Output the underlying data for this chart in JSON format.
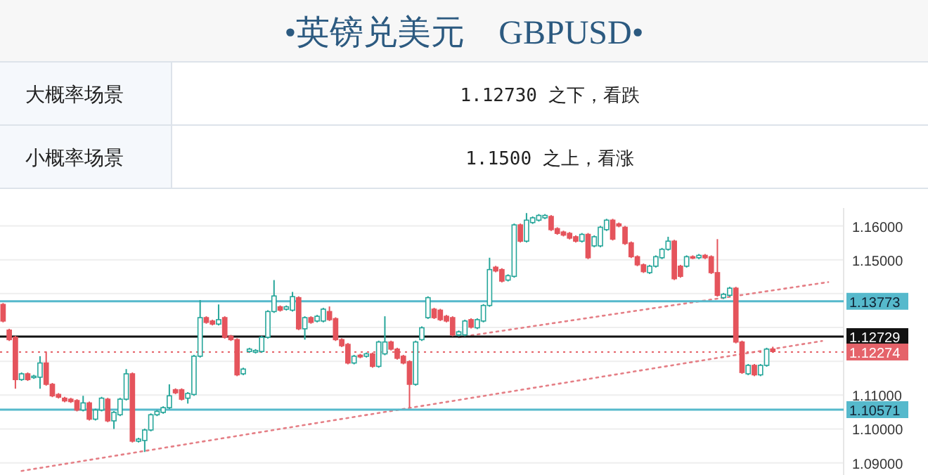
{
  "chart_data": {
    "type": "candlestick",
    "title": "•英镑兑美元　GBPUSD•",
    "annotations": [
      "大概率场景",
      "1.12730 之下，看跌",
      "小概率场景",
      "1.1500 之上，看涨"
    ],
    "categories": [
      null,
      null,
      null,
      null,
      null,
      null,
      null,
      null,
      null,
      null,
      null,
      null,
      null,
      null,
      null,
      null,
      null,
      null,
      null,
      null,
      null,
      null,
      null,
      null,
      null,
      null,
      null,
      null,
      null,
      null,
      null,
      null,
      null,
      null,
      null,
      null,
      null,
      null,
      null,
      null,
      null,
      null,
      null,
      null,
      null,
      null,
      null,
      null,
      null,
      null,
      null,
      null,
      null,
      null,
      null,
      null,
      null,
      null,
      null,
      null,
      null,
      null,
      null,
      null,
      null,
      null,
      null,
      null,
      null,
      null,
      null,
      null,
      null,
      null,
      null,
      null,
      null,
      null,
      null,
      null,
      null,
      null,
      null,
      null,
      null,
      null,
      null,
      null,
      null,
      null,
      null,
      null,
      null,
      null,
      null,
      null,
      null,
      null,
      null,
      null,
      null,
      null,
      null,
      null,
      null,
      null,
      null,
      null,
      null,
      null,
      null,
      null,
      null,
      null,
      null,
      null,
      null,
      null,
      null,
      null,
      null,
      null,
      null,
      null,
      null,
      null,
      null,
      null,
      null,
      null,
      null,
      null,
      null,
      null,
      null,
      null,
      null
    ],
    "ohlc": [
      [
        1.1368,
        1.1372,
        1.1315,
        1.1319
      ],
      [
        1.1292,
        1.1296,
        1.126,
        1.1264
      ],
      [
        1.1271,
        1.1275,
        1.1119,
        1.1146
      ],
      [
        1.1146,
        1.1167,
        1.1142,
        1.1163
      ],
      [
        1.1163,
        1.1167,
        1.1142,
        1.1146
      ],
      [
        1.1152,
        1.116,
        1.1148,
        1.1156
      ],
      [
        1.1153,
        1.1215,
        1.1119,
        1.1195
      ],
      [
        1.1195,
        1.1229,
        1.1128,
        1.1132
      ],
      [
        1.1132,
        1.1136,
        1.1094,
        1.1098
      ],
      [
        1.1102,
        1.1106,
        1.109,
        1.1094
      ],
      [
        1.1091,
        1.1095,
        1.1079,
        1.1083
      ],
      [
        1.1088,
        1.1092,
        1.1077,
        1.1081
      ],
      [
        1.1084,
        1.1088,
        1.1052,
        1.1056
      ],
      [
        1.1056,
        1.1098,
        1.1052,
        1.1077
      ],
      [
        1.1077,
        1.1081,
        1.1025,
        1.1029
      ],
      [
        1.1029,
        1.106,
        1.1025,
        1.1056
      ],
      [
        1.1056,
        1.1095,
        1.1052,
        1.1091
      ],
      [
        1.1088,
        1.1092,
        1.102,
        1.1024
      ],
      [
        1.1024,
        1.1053,
        1.1,
        1.1049
      ],
      [
        1.1042,
        1.1092,
        1.1038,
        1.1088
      ],
      [
        1.1088,
        1.1177,
        1.1084,
        1.1163
      ],
      [
        1.1163,
        1.1167,
        1.096,
        1.0964
      ],
      [
        1.0964,
        1.0974,
        1.096,
        1.097
      ],
      [
        1.0966,
        1.1001,
        1.0932,
        1.0997
      ],
      [
        1.0997,
        1.1046,
        1.0993,
        1.1042
      ],
      [
        1.1042,
        1.1056,
        1.1038,
        1.1052
      ],
      [
        1.1049,
        1.1067,
        1.1045,
        1.1063
      ],
      [
        1.1063,
        1.1132,
        1.1059,
        1.1098
      ],
      [
        1.1116,
        1.112,
        1.1103,
        1.1107
      ],
      [
        1.1116,
        1.112,
        1.1084,
        1.1088
      ],
      [
        1.1091,
        1.1109,
        1.1075,
        1.1105
      ],
      [
        1.1102,
        1.1219,
        1.1098,
        1.1215
      ],
      [
        1.1215,
        1.1381,
        1.1211,
        1.1329
      ],
      [
        1.1329,
        1.1333,
        1.1311,
        1.1315
      ],
      [
        1.1319,
        1.1323,
        1.1306,
        1.131
      ],
      [
        1.131,
        1.1368,
        1.1306,
        1.1323
      ],
      [
        1.1329,
        1.1333,
        1.1267,
        1.1271
      ],
      [
        1.1274,
        1.1278,
        1.126,
        1.1264
      ],
      [
        1.1264,
        1.1268,
        1.1156,
        1.116
      ],
      [
        1.1163,
        1.1181,
        1.1159,
        1.1177
      ],
      [
        1.1229,
        1.124,
        1.1225,
        1.1236
      ],
      [
        1.1227,
        1.1236,
        1.1223,
        1.1232
      ],
      [
        1.1229,
        1.1275,
        1.1225,
        1.1271
      ],
      [
        1.1271,
        1.1351,
        1.1267,
        1.1347
      ],
      [
        1.1347,
        1.144,
        1.1343,
        1.1393
      ],
      [
        1.1361,
        1.1365,
        1.1347,
        1.1351
      ],
      [
        1.1354,
        1.1365,
        1.135,
        1.1361
      ],
      [
        1.1351,
        1.1405,
        1.1347,
        1.1391
      ],
      [
        1.1388,
        1.1392,
        1.1292,
        1.1296
      ],
      [
        1.1296,
        1.1333,
        1.1264,
        1.1329
      ],
      [
        1.1329,
        1.1333,
        1.1311,
        1.1315
      ],
      [
        1.1319,
        1.1337,
        1.1315,
        1.1333
      ],
      [
        1.1319,
        1.1358,
        1.1315,
        1.1354
      ],
      [
        1.1347,
        1.1362,
        1.1319,
        1.1323
      ],
      [
        1.1326,
        1.133,
        1.126,
        1.1264
      ],
      [
        1.1264,
        1.1268,
        1.1242,
        1.1246
      ],
      [
        1.125,
        1.1254,
        1.1191,
        1.1195
      ],
      [
        1.1195,
        1.1219,
        1.1191,
        1.1215
      ],
      [
        1.1218,
        1.1222,
        1.1209,
        1.1213
      ],
      [
        1.1215,
        1.1226,
        1.1211,
        1.1222
      ],
      [
        1.1222,
        1.1226,
        1.1181,
        1.1185
      ],
      [
        1.1185,
        1.1261,
        1.1181,
        1.1257
      ],
      [
        1.1222,
        1.1333,
        1.1218,
        1.1257
      ],
      [
        1.1257,
        1.1261,
        1.1232,
        1.1236
      ],
      [
        1.1236,
        1.124,
        1.1205,
        1.1209
      ],
      [
        1.1215,
        1.1219,
        1.1191,
        1.1195
      ],
      [
        1.1199,
        1.1203,
        1.1063,
        1.1132
      ],
      [
        1.1132,
        1.1261,
        1.1128,
        1.1257
      ],
      [
        1.1264,
        1.1303,
        1.126,
        1.1299
      ],
      [
        1.1329,
        1.1392,
        1.1325,
        1.1388
      ],
      [
        1.1354,
        1.1358,
        1.1325,
        1.1329
      ],
      [
        1.1351,
        1.1355,
        1.1319,
        1.1323
      ],
      [
        1.1333,
        1.1337,
        1.1315,
        1.1319
      ],
      [
        1.1329,
        1.1333,
        1.1274,
        1.1278
      ],
      [
        1.1278,
        1.1291,
        1.1274,
        1.1287
      ],
      [
        1.1278,
        1.1323,
        1.1274,
        1.1319
      ],
      [
        1.1323,
        1.1327,
        1.1297,
        1.1301
      ],
      [
        1.1299,
        1.1327,
        1.1295,
        1.1323
      ],
      [
        1.1319,
        1.1369,
        1.1315,
        1.1365
      ],
      [
        1.1365,
        1.1506,
        1.1361,
        1.1471
      ],
      [
        1.1478,
        1.1482,
        1.1463,
        1.1467
      ],
      [
        1.1471,
        1.1475,
        1.1433,
        1.1437
      ],
      [
        1.144,
        1.1457,
        1.1436,
        1.1453
      ],
      [
        1.1451,
        1.1607,
        1.1447,
        1.1603
      ],
      [
        1.1603,
        1.1607,
        1.1551,
        1.1555
      ],
      [
        1.1555,
        1.1638,
        1.1551,
        1.1617
      ],
      [
        1.161,
        1.1628,
        1.1606,
        1.1624
      ],
      [
        1.1617,
        1.1635,
        1.1613,
        1.1631
      ],
      [
        1.1624,
        1.1635,
        1.162,
        1.1631
      ],
      [
        1.1628,
        1.1632,
        1.1585,
        1.1589
      ],
      [
        1.1592,
        1.1596,
        1.1574,
        1.1578
      ],
      [
        1.1582,
        1.1586,
        1.1569,
        1.1573
      ],
      [
        1.1578,
        1.1582,
        1.156,
        1.1564
      ],
      [
        1.1568,
        1.1572,
        1.1551,
        1.1555
      ],
      [
        1.1555,
        1.1579,
        1.1551,
        1.1575
      ],
      [
        1.1575,
        1.1579,
        1.1502,
        1.1506
      ],
      [
        1.1541,
        1.1572,
        1.1537,
        1.1568
      ],
      [
        1.1541,
        1.16,
        1.1537,
        1.1596
      ],
      [
        1.1589,
        1.1621,
        1.1585,
        1.1617
      ],
      [
        1.1617,
        1.1621,
        1.1557,
        1.1561
      ],
      [
        1.1606,
        1.161,
        1.1596,
        1.16
      ],
      [
        1.1596,
        1.16,
        1.1544,
        1.1548
      ],
      [
        1.155,
        1.1554,
        1.1505,
        1.1509
      ],
      [
        1.1509,
        1.1513,
        1.1481,
        1.1485
      ],
      [
        1.1485,
        1.1489,
        1.1461,
        1.1465
      ],
      [
        1.1462,
        1.1485,
        1.1458,
        1.1481
      ],
      [
        1.1481,
        1.1513,
        1.1477,
        1.1509
      ],
      [
        1.1506,
        1.1535,
        1.1502,
        1.1531
      ],
      [
        1.1531,
        1.1568,
        1.1527,
        1.1555
      ],
      [
        1.1555,
        1.1559,
        1.144,
        1.1444
      ],
      [
        1.1481,
        1.1485,
        1.1447,
        1.1451
      ],
      [
        1.1481,
        1.1513,
        1.1477,
        1.1509
      ],
      [
        1.1509,
        1.1513,
        1.1502,
        1.1506
      ],
      [
        1.1506,
        1.1517,
        1.1502,
        1.1513
      ],
      [
        1.1513,
        1.1517,
        1.1502,
        1.1506
      ],
      [
        1.1509,
        1.1513,
        1.1458,
        1.1462
      ],
      [
        1.1462,
        1.1561,
        1.1391,
        1.1395
      ],
      [
        1.1388,
        1.1402,
        1.1384,
        1.1398
      ],
      [
        1.1395,
        1.142,
        1.1391,
        1.1416
      ],
      [
        1.1416,
        1.142,
        1.1253,
        1.1257
      ],
      [
        1.1257,
        1.1261,
        1.1163,
        1.1167
      ],
      [
        1.1163,
        1.1192,
        1.1159,
        1.1188
      ],
      [
        1.1188,
        1.1192,
        1.1156,
        1.116
      ],
      [
        1.116,
        1.1192,
        1.1156,
        1.1188
      ],
      [
        1.1188,
        1.124,
        1.1184,
        1.1236
      ],
      [
        1.1236,
        1.1243,
        1.1225,
        1.1229
      ],
      null,
      null,
      null,
      null,
      null,
      null,
      null,
      null,
      null,
      null,
      null
    ],
    "series": [
      {
        "type": "line",
        "color": "#e57f86",
        "line_style": "dotted",
        "values": [
          null,
          null,
          null,
          null,
          null,
          null,
          null,
          null,
          null,
          null,
          null,
          null,
          null,
          null,
          null,
          null,
          null,
          null,
          null,
          null,
          null,
          null,
          null,
          null,
          null,
          null,
          null,
          null,
          null,
          null,
          null,
          null,
          null,
          null,
          null,
          null,
          null,
          null,
          null,
          null,
          null,
          null,
          null,
          null,
          null,
          null,
          null,
          null,
          null,
          null,
          null,
          null,
          null,
          null,
          null,
          null,
          null,
          null,
          null,
          null,
          null,
          null,
          null,
          null,
          null,
          null,
          null,
          null,
          null,
          null,
          null,
          null,
          null,
          null,
          1.1271,
          null,
          null,
          null,
          null,
          null,
          null,
          null,
          null,
          null,
          null,
          null,
          null,
          null,
          null,
          null,
          null,
          null,
          null,
          null,
          null,
          null,
          null,
          null,
          null,
          null,
          null,
          null,
          null,
          null,
          null,
          null,
          null,
          null,
          null,
          null,
          null,
          null,
          null,
          null,
          null,
          null,
          null,
          null,
          null,
          null,
          null,
          null,
          null,
          null,
          null,
          null,
          null,
          null,
          null,
          null,
          null,
          null,
          null,
          null,
          1.1434,
          null,
          null
        ]
      },
      {
        "type": "line",
        "color": "#e57f86",
        "line_style": "dotted",
        "values": [
          null,
          null,
          null,
          1.0876,
          null,
          null,
          null,
          null,
          null,
          null,
          null,
          null,
          null,
          null,
          null,
          null,
          null,
          null,
          null,
          null,
          null,
          null,
          null,
          null,
          null,
          null,
          null,
          null,
          null,
          null,
          null,
          null,
          null,
          null,
          null,
          null,
          null,
          null,
          null,
          null,
          null,
          null,
          null,
          null,
          null,
          null,
          null,
          null,
          null,
          null,
          null,
          null,
          null,
          null,
          null,
          null,
          null,
          null,
          null,
          null,
          null,
          null,
          null,
          null,
          null,
          null,
          null,
          null,
          null,
          null,
          null,
          null,
          null,
          null,
          null,
          null,
          null,
          null,
          null,
          null,
          null,
          null,
          null,
          null,
          null,
          null,
          null,
          null,
          null,
          null,
          null,
          null,
          null,
          null,
          null,
          null,
          null,
          null,
          null,
          null,
          null,
          null,
          null,
          null,
          null,
          null,
          null,
          null,
          null,
          null,
          null,
          null,
          null,
          null,
          null,
          null,
          null,
          null,
          null,
          null,
          null,
          null,
          null,
          null,
          null,
          null,
          null,
          null,
          null,
          null,
          null,
          null,
          null,
          1.126,
          null,
          null,
          null
        ]
      }
    ],
    "ref_lines": [
      {
        "axis": "y",
        "value": 1.13773,
        "label": "1.13773",
        "color": "#56b9cc",
        "line_style": "solid"
      },
      {
        "axis": "y",
        "value": 1.12729,
        "label": "1.12729",
        "color": "#111111",
        "line_style": "solid"
      },
      {
        "axis": "y",
        "value": 1.12274,
        "label": "1.12274",
        "color": "#e5636a",
        "line_style": "dotted"
      },
      {
        "axis": "y",
        "value": 1.10571,
        "label": "1.10571",
        "color": "#56b9cc",
        "line_style": "solid"
      }
    ],
    "ylim": [
      1.0864,
      1.1653
    ],
    "yticks": [
      {
        "value": 1.09,
        "label": "1.09000"
      },
      {
        "value": 1.1,
        "label": "1.10000"
      },
      {
        "value": 1.11,
        "label": "1.11000"
      },
      {
        "value": 1.12,
        "label": null
      },
      {
        "value": 1.13,
        "label": null
      },
      {
        "value": 1.14,
        "label": null
      },
      {
        "value": 1.15,
        "label": "1.15000"
      },
      {
        "value": 1.16,
        "label": "1.16000"
      }
    ],
    "grid": "y"
  }
}
